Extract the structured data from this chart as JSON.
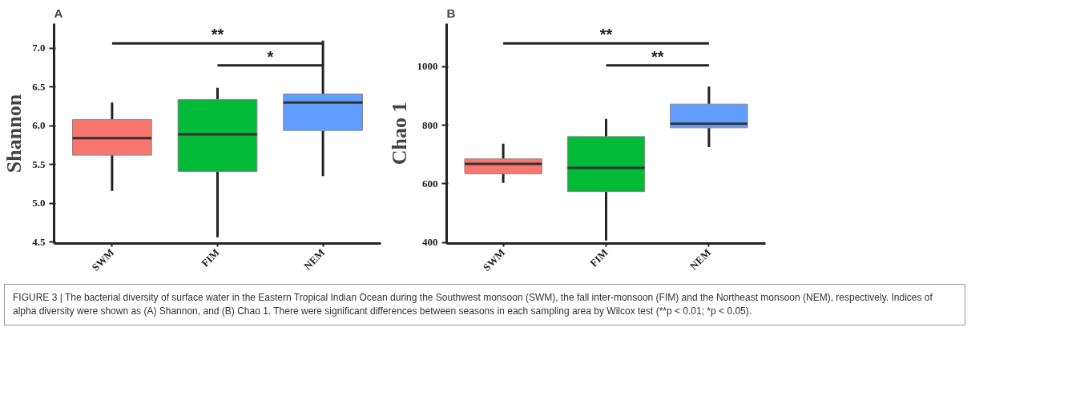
{
  "chart_data": [
    {
      "type": "box",
      "title": "A",
      "ylabel": "Shannon",
      "categories": [
        "SWM",
        "FIM",
        "NEM"
      ],
      "colors": [
        "#f8766d",
        "#00ba38",
        "#619cff"
      ],
      "ylim": [
        4.48,
        7.32
      ],
      "yticks": [
        {
          "value": 4.5,
          "label": "4.5"
        },
        {
          "value": 5.0,
          "label": "5.0"
        },
        {
          "value": 5.5,
          "label": "5.5"
        },
        {
          "value": 6.0,
          "label": "6.0"
        },
        {
          "value": 6.5,
          "label": "6.5"
        },
        {
          "value": 7.0,
          "label": "7.0"
        }
      ],
      "grid": false,
      "boxes": [
        {
          "low": 5.16,
          "q1": 5.62,
          "median": 5.84,
          "q3": 6.08,
          "high": 6.3
        },
        {
          "low": 4.56,
          "q1": 5.41,
          "median": 5.89,
          "q3": 6.34,
          "high": 6.49
        },
        {
          "low": 5.35,
          "q1": 5.94,
          "median": 6.3,
          "q3": 6.41,
          "high": 7.1
        }
      ],
      "annotations": [
        "**",
        "*"
      ]
    },
    {
      "type": "box",
      "title": "B",
      "ylabel": "Chao 1",
      "categories": [
        "SWM",
        "FIM",
        "NEM"
      ],
      "colors": [
        "#f8766d",
        "#00ba38",
        "#619cff"
      ],
      "ylim": [
        396,
        1147
      ],
      "yticks": [
        400,
        600,
        800,
        1000
      ],
      "grid": false,
      "boxes": [
        {
          "low": 603,
          "q1": 634,
          "median": 668,
          "q3": 685,
          "high": 737
        },
        {
          "low": 406,
          "q1": 573,
          "median": 654,
          "q3": 761,
          "high": 821
        },
        {
          "low": 725,
          "q1": 791,
          "median": 805,
          "q3": 872,
          "high": 932
        }
      ],
      "annotations": [
        "**",
        "**"
      ]
    },
    {
      "type": "other",
      "annotations": [
        "FIGURE 3 | The bacterial diversity of surface water in the Eastern Tropical Indian Ocean during the Southwest monsoon (SWM), the fall inter-monsoon (FIM) and the Northeast monsoon (NEM), respectively. Indices of alpha diversity were shown as (A) Shannon, and (B) Chao 1. There were significant differences between seasons in each sampling area by Wilcox test (**p < 0.01; *p < 0.05)."
      ]
    }
  ]
}
